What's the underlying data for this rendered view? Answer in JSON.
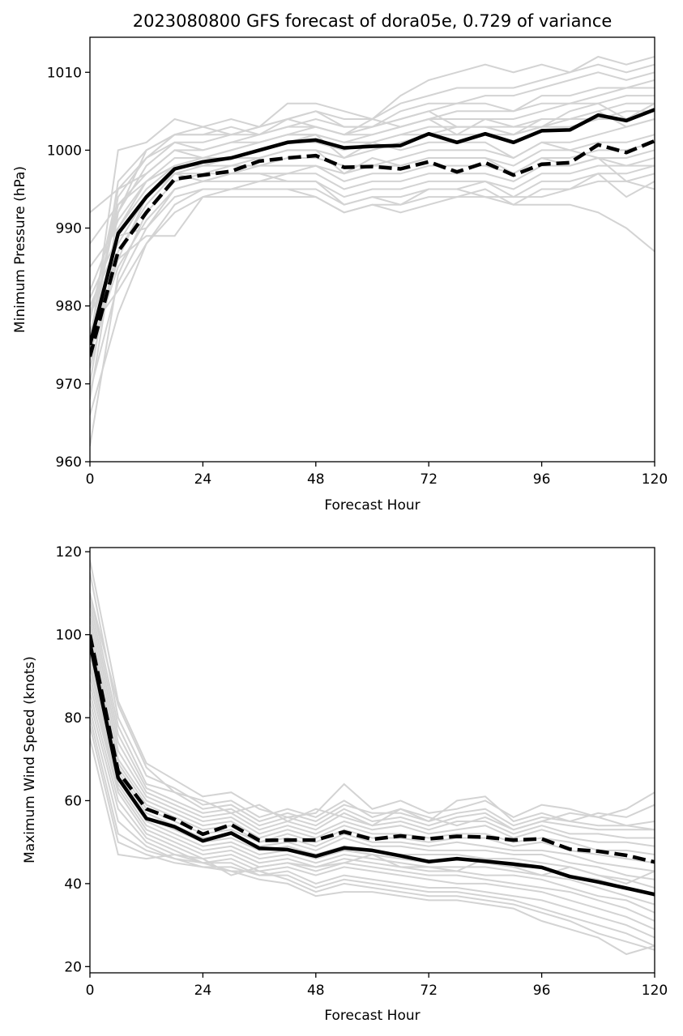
{
  "title": "2023080800 GFS forecast of dora05e, 0.729 of variance",
  "colors": {
    "ensemble": "#d3d3d3",
    "mean": "#000000",
    "background": "#ffffff"
  },
  "chart_data": [
    {
      "type": "line",
      "title": "2023080800 GFS forecast of dora05e, 0.729 of variance",
      "xlabel": "Forecast Hour",
      "ylabel": "Minimum Pressure (hPa)",
      "xlim": [
        0,
        120
      ],
      "ylim": [
        960,
        1014.5
      ],
      "xticks": [
        0,
        24,
        48,
        72,
        96,
        120
      ],
      "yticks": [
        960,
        970,
        980,
        990,
        1000,
        1010
      ],
      "grid": false,
      "x": [
        0,
        6,
        12,
        18,
        24,
        30,
        36,
        42,
        48,
        54,
        60,
        66,
        72,
        78,
        84,
        90,
        96,
        102,
        108,
        114,
        120
      ],
      "series": [
        {
          "style": "solid",
          "color": "#000000",
          "values": [
            975,
            989.3,
            994,
            997.6,
            998.5,
            999,
            1000,
            1001,
            1001.3,
            1000.3,
            1000.5,
            1000.6,
            1002.1,
            1001,
            1002.1,
            1001,
            1002.5,
            1002.6,
            1004.5,
            1003.8,
            1005.2
          ]
        },
        {
          "style": "dashed",
          "color": "#000000",
          "values": [
            973.5,
            987,
            992,
            996.3,
            996.8,
            997.3,
            998.6,
            999,
            999.3,
            997.8,
            997.9,
            997.6,
            998.5,
            997.2,
            998.4,
            996.8,
            998.2,
            998.4,
            1000.7,
            999.7,
            1001.2
          ]
        }
      ],
      "ensemble": [
        [
          975,
          1000,
          1001,
          1004,
          1003,
          1004,
          1003,
          1006,
          1006,
          1005,
          1004,
          1007,
          1009,
          1010,
          1011,
          1010,
          1011,
          1010,
          1012,
          1011,
          1012
        ],
        [
          973,
          996,
          1000,
          1002,
          1002,
          1002,
          1003,
          1004,
          1005,
          1004,
          1004,
          1006,
          1007,
          1008,
          1008,
          1008,
          1009,
          1010,
          1011,
          1010,
          1011
        ],
        [
          978,
          995,
          999,
          1001,
          1001,
          1002,
          1002,
          1003,
          1004,
          1003,
          1003,
          1005,
          1006,
          1006,
          1007,
          1007,
          1008,
          1009,
          1010,
          1009,
          1010
        ],
        [
          970,
          992,
          998,
          1001,
          1000,
          1001,
          1002,
          1003,
          1003,
          1002,
          1003,
          1004,
          1005,
          1006,
          1006,
          1005,
          1007,
          1007,
          1008,
          1008,
          1009
        ],
        [
          976,
          993,
          997,
          1000,
          1000,
          1001,
          1001,
          1002,
          1003,
          1002,
          1002,
          1003,
          1004,
          1005,
          1005,
          1005,
          1006,
          1006,
          1007,
          1008,
          1008
        ],
        [
          982,
          991,
          996,
          999,
          999,
          1000,
          1001,
          1002,
          1002,
          1001,
          1002,
          1003,
          1004,
          1004,
          1004,
          1004,
          1005,
          1006,
          1006,
          1007,
          1007
        ],
        [
          968,
          990,
          995,
          998,
          998,
          999,
          1000,
          1001,
          1001,
          1000,
          1001,
          1002,
          1003,
          1003,
          1003,
          1003,
          1004,
          1004,
          1005,
          1006,
          1006
        ],
        [
          980,
          988,
          994,
          997,
          998,
          998,
          999,
          1000,
          1000,
          999,
          1000,
          1001,
          1002,
          1002,
          1002,
          1002,
          1003,
          1003,
          1004,
          1004,
          1005
        ],
        [
          985,
          990,
          996,
          998,
          999,
          999,
          1000,
          1001,
          1002,
          1001,
          1001,
          1002,
          1002,
          1003,
          1003,
          1002,
          1003,
          1004,
          1004,
          1005,
          1005
        ],
        [
          972,
          987,
          993,
          997,
          997,
          998,
          998,
          999,
          999,
          998,
          998,
          999,
          1000,
          1000,
          1000,
          999,
          1001,
          1001,
          1002,
          1003,
          1004
        ],
        [
          962,
          984,
          992,
          996,
          997,
          997,
          998,
          998,
          998,
          997,
          998,
          998,
          999,
          999,
          999,
          998,
          1000,
          1000,
          1001,
          1001,
          1002
        ],
        [
          979,
          986,
          994,
          997,
          996,
          997,
          997,
          997,
          998,
          996,
          997,
          997,
          998,
          998,
          998,
          997,
          999,
          999,
          1000,
          1000,
          1001
        ],
        [
          974,
          985,
          991,
          995,
          996,
          996,
          996,
          997,
          997,
          995,
          996,
          996,
          997,
          997,
          997,
          996,
          998,
          998,
          999,
          999,
          1000
        ],
        [
          969,
          983,
          990,
          994,
          995,
          995,
          996,
          996,
          996,
          994,
          995,
          995,
          996,
          996,
          996,
          995,
          997,
          997,
          998,
          998,
          999
        ],
        [
          977,
          982,
          988,
          993,
          995,
          995,
          995,
          995,
          995,
          993,
          994,
          994,
          995,
          995,
          996,
          994,
          996,
          996,
          997,
          997,
          998
        ],
        [
          966,
          979,
          988,
          992,
          994,
          994,
          994,
          994,
          994,
          992,
          993,
          993,
          994,
          994,
          995,
          993,
          995,
          995,
          996,
          996,
          997
        ],
        [
          981,
          989,
          990,
          995,
          996,
          997,
          997,
          996,
          996,
          993,
          994,
          993,
          995,
          995,
          994,
          994,
          994,
          995,
          997,
          994,
          996
        ],
        [
          974,
          986,
          989,
          989,
          994,
          995,
          995,
          995,
          994,
          992,
          993,
          992,
          993,
          994,
          994,
          993,
          993,
          993,
          992,
          990,
          987
        ],
        [
          992,
          995,
          997,
          1000,
          999,
          1000,
          1001,
          1002,
          1002,
          999,
          1001,
          1000,
          1001,
          1001,
          1001,
          999,
          1001,
          1000,
          999,
          998,
          998
        ],
        [
          988,
          993,
          996,
          998,
          998,
          999,
          999,
          1000,
          1000,
          997,
          999,
          998,
          999,
          999,
          999,
          997,
          999,
          998,
          999,
          996,
          995
        ],
        [
          976,
          994,
          999,
          1002,
          1003,
          1002,
          1003,
          1004,
          1003,
          1002,
          1004,
          1003,
          1004,
          1002,
          1004,
          1003,
          1003,
          1005,
          1006,
          1004,
          1006
        ],
        [
          979,
          992,
          1000,
          1002,
          1002,
          1003,
          1002,
          1004,
          1005,
          1003,
          1003,
          1004,
          1005,
          1003,
          1003,
          1002,
          1004,
          1004,
          1005,
          1003,
          1004
        ]
      ]
    },
    {
      "type": "line",
      "xlabel": "Forecast Hour",
      "ylabel": "Maximum Wind Speed (knots)",
      "xlim": [
        0,
        120
      ],
      "ylim": [
        18.5,
        121
      ],
      "xticks": [
        0,
        24,
        48,
        72,
        96,
        120
      ],
      "yticks": [
        20,
        40,
        60,
        80,
        100,
        120
      ],
      "grid": false,
      "x": [
        0,
        6,
        12,
        18,
        24,
        30,
        36,
        42,
        48,
        54,
        60,
        66,
        72,
        78,
        84,
        90,
        96,
        102,
        108,
        114,
        120
      ],
      "series": [
        {
          "style": "solid",
          "color": "#000000",
          "values": [
            98,
            65.5,
            55.7,
            53.7,
            50.3,
            52.2,
            48.5,
            48.2,
            46.6,
            48.6,
            48,
            46.7,
            45.3,
            46,
            45.4,
            44.7,
            43.9,
            41.7,
            40.4,
            38.9,
            37.4
          ]
        },
        {
          "style": "dashed",
          "color": "#000000",
          "values": [
            100,
            67,
            58,
            55.5,
            51.9,
            54.2,
            50.4,
            50.5,
            50.5,
            52.5,
            50.7,
            51.5,
            50.8,
            51.4,
            51.2,
            50.5,
            50.8,
            48.3,
            47.8,
            46.8,
            45.2
          ]
        }
      ],
      "ensemble": [
        [
          118,
          84,
          69,
          65,
          61,
          62,
          58,
          56,
          57,
          64,
          58,
          60,
          57,
          58,
          60,
          56,
          59,
          58,
          56,
          58,
          62
        ],
        [
          115,
          80,
          66,
          63,
          59,
          60,
          56,
          58,
          56,
          60,
          56,
          58,
          55,
          60,
          61,
          55,
          57,
          55,
          57,
          56,
          59
        ],
        [
          110,
          78,
          64,
          62,
          58,
          59,
          55,
          57,
          55,
          59,
          57,
          57,
          55,
          57,
          58,
          54,
          56,
          55,
          54,
          54,
          55
        ],
        [
          108,
          76,
          63,
          60,
          57,
          58,
          54,
          56,
          54,
          58,
          55,
          56,
          54,
          56,
          57,
          53,
          55,
          54,
          53,
          53,
          53
        ],
        [
          106,
          74,
          62,
          59,
          56,
          57,
          53,
          55,
          53,
          57,
          54,
          55,
          53,
          55,
          55,
          52,
          54,
          52,
          52,
          51,
          51
        ],
        [
          104,
          72,
          61,
          58,
          55,
          56,
          52,
          54,
          52,
          55,
          53,
          54,
          52,
          53,
          54,
          51,
          53,
          51,
          50,
          50,
          49
        ],
        [
          102,
          70,
          60,
          57,
          54,
          55,
          51,
          53,
          51,
          54,
          52,
          52,
          51,
          52,
          52,
          50,
          51,
          50,
          48,
          48,
          47
        ],
        [
          100,
          69,
          59,
          56,
          53,
          54,
          50,
          52,
          50,
          53,
          51,
          51,
          50,
          51,
          51,
          49,
          50,
          48,
          47,
          46,
          45
        ],
        [
          98,
          68,
          58,
          55,
          52,
          53,
          50,
          51,
          49,
          52,
          50,
          50,
          49,
          50,
          49,
          48,
          48,
          47,
          45,
          44,
          43
        ],
        [
          96,
          67,
          57,
          54,
          51,
          52,
          49,
          50,
          48,
          51,
          49,
          49,
          48,
          48,
          48,
          47,
          47,
          45,
          44,
          42,
          41
        ],
        [
          95,
          66,
          56,
          53,
          50,
          51,
          48,
          49,
          47,
          49,
          48,
          47,
          47,
          47,
          46,
          46,
          45,
          44,
          42,
          41,
          39
        ],
        [
          93,
          65,
          55,
          52,
          49,
          50,
          47,
          48,
          46,
          48,
          47,
          46,
          45,
          46,
          45,
          44,
          44,
          42,
          41,
          39,
          37
        ],
        [
          92,
          64,
          54,
          51,
          48,
          49,
          46,
          47,
          45,
          47,
          46,
          45,
          44,
          44,
          44,
          43,
          42,
          41,
          39,
          37,
          35
        ],
        [
          90,
          63,
          53,
          50,
          47,
          48,
          45,
          46,
          44,
          46,
          45,
          44,
          43,
          43,
          42,
          42,
          41,
          39,
          37,
          36,
          33
        ],
        [
          88,
          62,
          52,
          49,
          46,
          47,
          44,
          45,
          43,
          45,
          44,
          43,
          42,
          42,
          41,
          40,
          39,
          38,
          36,
          34,
          31
        ],
        [
          86,
          60,
          51,
          48,
          45,
          46,
          43,
          44,
          42,
          44,
          43,
          42,
          41,
          40,
          40,
          39,
          38,
          36,
          34,
          32,
          29
        ],
        [
          84,
          58,
          50,
          47,
          45,
          45,
          42,
          43,
          40,
          42,
          41,
          40,
          39,
          39,
          38,
          37,
          36,
          34,
          32,
          30,
          27
        ],
        [
          82,
          55,
          49,
          46,
          44,
          44,
          42,
          42,
          39,
          41,
          40,
          39,
          38,
          38,
          37,
          36,
          34,
          32,
          30,
          28,
          25
        ],
        [
          80,
          52,
          48,
          46,
          45,
          43,
          43,
          41,
          38,
          40,
          39,
          38,
          37,
          37,
          36,
          35,
          33,
          31,
          28,
          26,
          24
        ],
        [
          78,
          50,
          47,
          45,
          44,
          43,
          41,
          40,
          37,
          38,
          38,
          37,
          36,
          36,
          35,
          34,
          31,
          29,
          27,
          23,
          25
        ],
        [
          75,
          47,
          46,
          47,
          46,
          42,
          44,
          45,
          44,
          45,
          47,
          44,
          44,
          43,
          46,
          44,
          42,
          44,
          42,
          40,
          43
        ],
        [
          110,
          83,
          68,
          62,
          60,
          57,
          59,
          55,
          58,
          56,
          54,
          58,
          56,
          54,
          56,
          53,
          55,
          57,
          56,
          54,
          53
        ]
      ]
    }
  ]
}
